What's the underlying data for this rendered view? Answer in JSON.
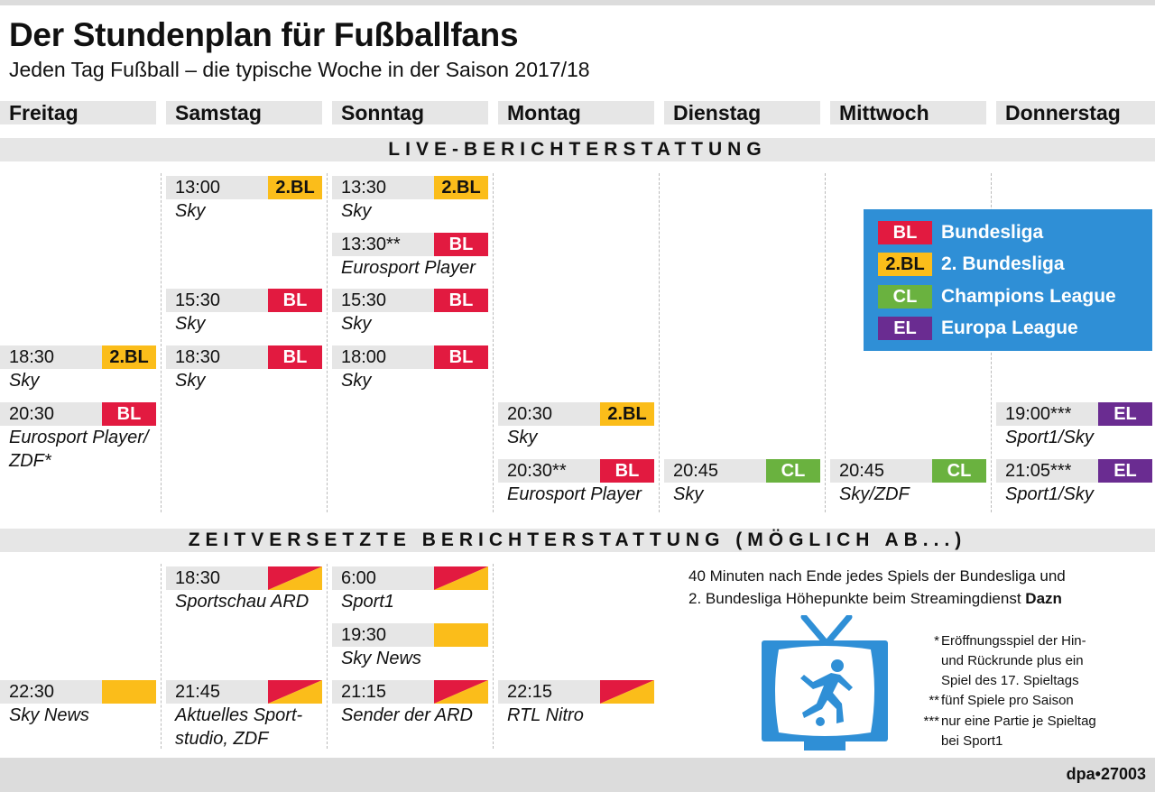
{
  "colors": {
    "BL": "#e21a40",
    "2.BL": "#fbbd1a",
    "CL": "#6ab23f",
    "EL": "#6a2c91",
    "legend_bg": "#2f8fd6",
    "sky_news": "#fbbd1a",
    "ard_red": "#e21a40"
  },
  "header": {
    "title": "Der Stundenplan für Fußballfans",
    "subtitle": "Jeden Tag Fußball – die typische Woche in der Saison 2017/18"
  },
  "days": [
    "Freitag",
    "Samstag",
    "Sonntag",
    "Montag",
    "Dienstag",
    "Mittwoch",
    "Donnerstag"
  ],
  "sections": {
    "live": "LIVE-BERICHTERSTATTUNG",
    "delayed": "ZEITVERSETZTE BERICHTERSTATTUNG (MÖGLICH AB...)"
  },
  "live": [
    {
      "time": "18:30",
      "badge": "2.BL",
      "channel": "Sky"
    },
    {
      "time": "20:30",
      "badge": "BL",
      "channel": "Eurosport Player/"
    },
    {
      "channel": "ZDF*"
    },
    {
      "time": "13:00",
      "badge": "2.BL",
      "channel": "Sky"
    },
    {
      "time": "15:30",
      "badge": "BL",
      "channel": "Sky"
    },
    {
      "time": "18:30",
      "badge": "BL",
      "channel": "Sky"
    },
    {
      "time": "13:30",
      "badge": "2.BL",
      "channel": "Sky"
    },
    {
      "time": "13:30**",
      "badge": "BL",
      "channel": "Eurosport Player"
    },
    {
      "time": "15:30",
      "badge": "BL",
      "channel": "Sky"
    },
    {
      "time": "18:00",
      "badge": "BL",
      "channel": "Sky"
    },
    {
      "time": "20:30",
      "badge": "2.BL",
      "channel": "Sky"
    },
    {
      "time": "20:30**",
      "badge": "BL",
      "channel": "Eurosport Player"
    },
    {
      "time": "20:45",
      "badge": "CL",
      "channel": "Sky"
    },
    {
      "time": "20:45",
      "badge": "CL",
      "channel": "Sky/ZDF"
    },
    {
      "time": "19:00***",
      "badge": "EL",
      "channel": "Sport1/Sky"
    },
    {
      "time": "21:05***",
      "badge": "EL",
      "channel": "Sport1/Sky"
    }
  ],
  "legend": [
    {
      "code": "BL",
      "label": "Bundesliga"
    },
    {
      "code": "2.BL",
      "label": "2. Bundesliga"
    },
    {
      "code": "CL",
      "label": "Champions League"
    },
    {
      "code": "EL",
      "label": "Europa League"
    }
  ],
  "delayed": [
    {
      "time": "22:30",
      "channel": "Sky News"
    },
    {
      "time": "18:30",
      "channel": "Sportschau ARD"
    },
    {
      "time": "21:45",
      "channel": "Aktuelles Sport-"
    },
    {
      "channel": "studio, ZDF"
    },
    {
      "time": "6:00",
      "channel": "Sport1"
    },
    {
      "time": "19:30",
      "channel": "Sky News"
    },
    {
      "time": "21:15",
      "channel": "Sender der ARD"
    },
    {
      "time": "22:15",
      "channel": "RTL Nitro"
    }
  ],
  "dazn_note": {
    "line1": "40 Minuten nach Ende jedes Spiels der Bundesliga und",
    "line2_prefix": "2. Bundesliga Höhepunkte beim Streamingdienst ",
    "line2_bold": "Dazn"
  },
  "footnotes": [
    {
      "mark": "*",
      "line1": "Eröffnungsspiel der Hin-",
      "line2": "und Rückrunde plus ein",
      "line3": "Spiel des 17. Spieltags"
    },
    {
      "mark": "**",
      "line1": "fünf Spiele pro Saison"
    },
    {
      "mark": "***",
      "line1": "nur eine Partie je Spieltag",
      "line2": "bei Sport1"
    }
  ],
  "credit": "dpa•27003"
}
